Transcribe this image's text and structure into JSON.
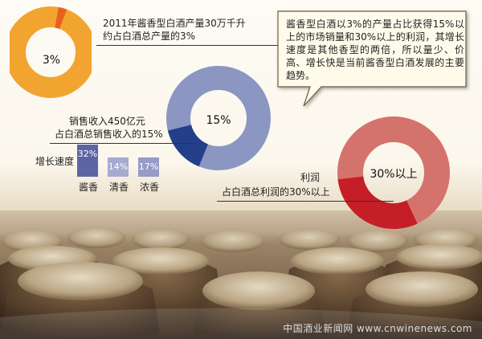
{
  "note_1": {
    "line1": "2011年酱香型白酒产量30万千升",
    "line2": "约占白酒总产量的3%"
  },
  "note_2": {
    "line1": "销售收入450亿元",
    "line2": "占白酒总销售收入的15%"
  },
  "note_3": {
    "line1": "利润",
    "line2": "占白酒总利润的30%以上"
  },
  "rings": [
    {
      "label": "3%",
      "share": 0.03,
      "main_color": "#f2a431",
      "accent_color": "#e8601e"
    },
    {
      "label": "15%",
      "share": 0.15,
      "main_color": "#8b97c2",
      "accent_color": "#233f8a"
    },
    {
      "label": "30%以上",
      "share": 0.3,
      "main_color": "#d4736c",
      "accent_color": "#c61e27"
    }
  ],
  "growth": {
    "title": "增长速度",
    "bars": [
      {
        "value": "32%",
        "name": "酱香",
        "color": "#5d64a6",
        "level": 0.32
      },
      {
        "value": "14%",
        "name": "清香",
        "color": "#a6aad0",
        "level": 0.14
      },
      {
        "value": "17%",
        "name": "浓香",
        "color": "#979bc8",
        "level": 0.17
      }
    ]
  },
  "callout": {
    "text": "酱香型白酒以3%的产量占比获得15%以上的市场销量和30%以上的利润，其增长速度是其他香型的两倍，所以量少、价高、增长快是当前酱香型白酒发展的主要趋势。"
  },
  "watermark": "中国酒业新闻网 www.cnwinenews.com"
}
